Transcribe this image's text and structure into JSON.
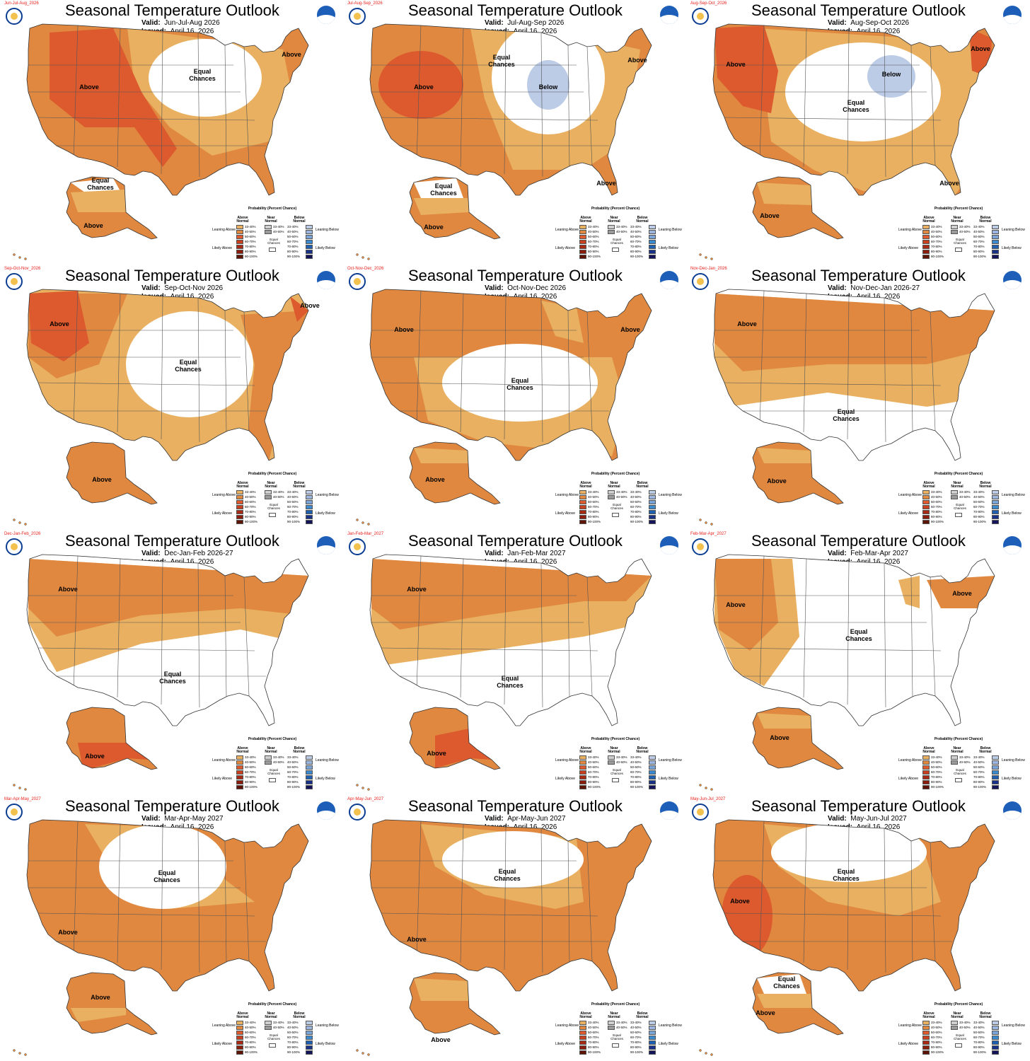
{
  "colors": {
    "above_33_40": "#e8b060",
    "above_40_50": "#e08840",
    "above_50_60": "#dc5a2e",
    "below_33_40": "#bccbe6",
    "equal_chances": "#ffffff",
    "state_lines": "#555555"
  },
  "title": "Seasonal Temperature Outlook",
  "valid_label": "Valid:",
  "issued_label": "Issued:",
  "issued_date": "April 16, 2026",
  "legend": {
    "header": "Probability (Percent Chance)",
    "above_header": "Above Normal",
    "near_header": "Near Normal",
    "below_header": "Below Normal",
    "leaning_above": "Leaning Above",
    "likely_above": "Likely Above",
    "leaning_below": "Leaning Below",
    "likely_below": "Likely Below",
    "equal": "Equal Chances",
    "ranges_above": [
      "33-40%",
      "40-50%",
      "50-60%",
      "60-70%",
      "70-80%",
      "80-90%",
      "90-100%"
    ],
    "ranges_near": [
      "33-40%",
      "40-50%"
    ],
    "ranges_below": [
      "33-40%",
      "40-50%",
      "50-60%",
      "60-70%",
      "70-80%",
      "80-90%",
      "90-100%"
    ],
    "above_colors": [
      "#e8b060",
      "#e08840",
      "#dc5a2e",
      "#c8401e",
      "#a82a12",
      "#8a1e0a",
      "#5e1404"
    ],
    "near_colors": [
      "#cfcfcf",
      "#9a9a9a"
    ],
    "below_colors": [
      "#bccbe6",
      "#9cb5de",
      "#7aa4d8",
      "#3b8ad0",
      "#1f5fb0",
      "#18328a",
      "#14145a"
    ]
  },
  "panels": [
    {
      "tag": "Jun-Jul-Aug_2026",
      "valid": "Jun-Jul-Aug 2026",
      "labels": [
        "Above",
        "Equal Chances",
        "Above",
        "Equal Chances",
        "Above"
      ]
    },
    {
      "tag": "Jul-Aug-Sep_2026",
      "valid": "Jul-Aug-Sep 2026",
      "labels": [
        "Above",
        "Equal Chances",
        "Below",
        "Above",
        "Above",
        "Equal Chances",
        "Above"
      ]
    },
    {
      "tag": "Aug-Sep-Oct_2026",
      "valid": "Aug-Sep-Oct 2026",
      "labels": [
        "Above",
        "Below",
        "Equal Chances",
        "Above",
        "Above",
        "Above"
      ]
    },
    {
      "tag": "Sep-Oct-Nov_2026",
      "valid": "Sep-Oct-Nov 2026",
      "labels": [
        "Above",
        "Equal Chances",
        "Above",
        "Above"
      ]
    },
    {
      "tag": "Oct-Nov-Dec_2026",
      "valid": "Oct-Nov-Dec 2026",
      "labels": [
        "Above",
        "Equal Chances",
        "Above",
        "Above"
      ]
    },
    {
      "tag": "Nov-Dec-Jan_2026",
      "valid": "Nov-Dec-Jan 2026-27",
      "labels": [
        "Above",
        "Equal Chances",
        "Above"
      ]
    },
    {
      "tag": "Dec-Jan-Feb_2026",
      "valid": "Dec-Jan-Feb 2026-27",
      "labels": [
        "Above",
        "Equal Chances",
        "Above"
      ]
    },
    {
      "tag": "Jan-Feb-Mar_2027",
      "valid": "Jan-Feb-Mar 2027",
      "labels": [
        "Above",
        "Equal Chances",
        "Above"
      ]
    },
    {
      "tag": "Feb-Mar-Apr_2027",
      "valid": "Feb-Mar-Apr 2027",
      "labels": [
        "Above",
        "Equal Chances",
        "Above",
        "Above"
      ]
    },
    {
      "tag": "Mar-Apr-May_2027",
      "valid": "Mar-Apr-May 2027",
      "labels": [
        "Above",
        "Equal Chances",
        "Above"
      ]
    },
    {
      "tag": "Apr-May-Jun_2027",
      "valid": "Apr-May-Jun 2027",
      "labels": [
        "Above",
        "Equal Chances",
        "Above"
      ]
    },
    {
      "tag": "May-Jun-Jul_2027",
      "valid": "May-Jun-Jul 2027",
      "labels": [
        "Above",
        "Equal Chances",
        "Above",
        "Equal Chances"
      ]
    }
  ]
}
